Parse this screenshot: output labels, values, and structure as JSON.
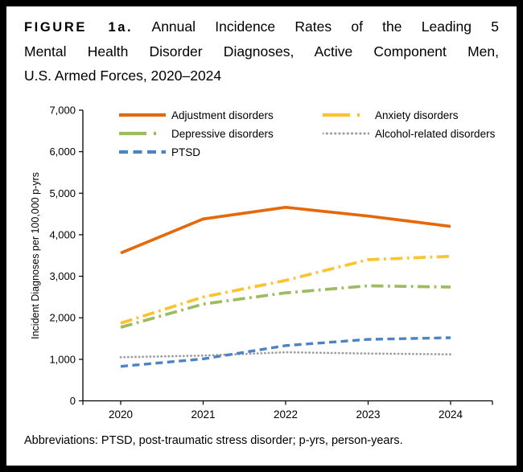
{
  "title": {
    "label": "FIGURE 1a.",
    "line1": "Annual Incidence Rates of the Leading 5",
    "line2": "Mental Health Disorder Diagnoses, Active Component Men,",
    "line3": "U.S. Armed Forces, 2020–2024"
  },
  "footnote": "Abbreviations: PTSD, post-traumatic stress disorder; p-yrs, person-years.",
  "chart_data": {
    "type": "line",
    "title": "",
    "categories": [
      "2020",
      "2021",
      "2022",
      "2023",
      "2024"
    ],
    "series": [
      {
        "name": "Adjustment disorders",
        "color": "#E3690B",
        "line_style": "solid",
        "values": [
          3560,
          4380,
          4660,
          4450,
          4200
        ]
      },
      {
        "name": "Anxiety disorders",
        "color": "#FCC330",
        "line_style": "dash-dot",
        "values": [
          1870,
          2500,
          2900,
          3400,
          3480
        ]
      },
      {
        "name": "Depressive disorders",
        "color": "#9DBB61",
        "line_style": "dash-dot",
        "values": [
          1770,
          2330,
          2600,
          2770,
          2740
        ]
      },
      {
        "name": "Alcohol-related disorders",
        "color": "#9E9E9E",
        "line_style": "dotted",
        "values": [
          1050,
          1090,
          1170,
          1140,
          1120
        ]
      },
      {
        "name": "PTSD",
        "color": "#4D82C4",
        "line_style": "dashed",
        "values": [
          830,
          1010,
          1330,
          1480,
          1520
        ]
      }
    ],
    "xlabel": "",
    "ylabel": "Incident Diagnoses per 100,000 p-yrs",
    "ylim": [
      0,
      7000
    ],
    "ytick_interval": 1000,
    "grid": false,
    "legend_position": "top-inside"
  }
}
